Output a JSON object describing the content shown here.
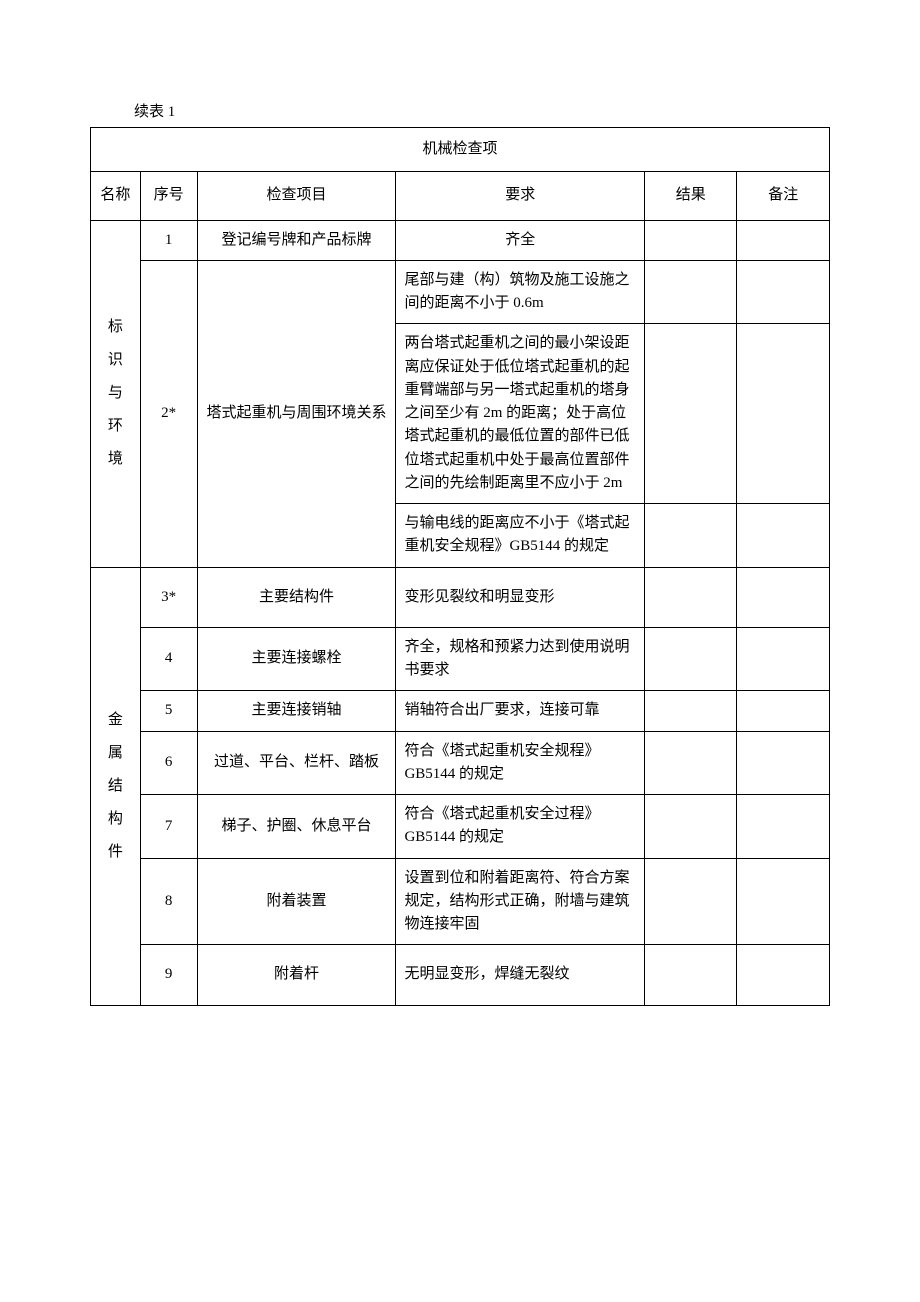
{
  "caption": "续表 1",
  "tableTitle": "机械检查项",
  "headers": {
    "name": "名称",
    "seq": "序号",
    "item": "检查项目",
    "req": "要求",
    "result": "结果",
    "remark": "备注"
  },
  "section1": {
    "name": "标识与环境",
    "row1": {
      "seq": "1",
      "item": "登记编号牌和产品标牌",
      "req": "齐全"
    },
    "row2": {
      "seq": "2*",
      "item": "塔式起重机与周围环境关系",
      "req_a": "尾部与建（构）筑物及施工设施之间的距离不小于 0.6m",
      "req_b": "两台塔式起重机之间的最小架设距离应保证处于低位塔式起重机的起重臂端部与另一塔式起重机的塔身之间至少有 2m 的距离；处于高位塔式起重机的最低位置的部件已低位塔式起重机中处于最高位置部件之间的先绘制距离里不应小于 2m",
      "req_c": "与输电线的距离应不小于《塔式起重机安全规程》GB5144 的规定"
    }
  },
  "section2": {
    "name": "金属结构件",
    "rows": [
      {
        "seq": "3*",
        "item": "主要结构件",
        "req": "变形见裂纹和明显变形"
      },
      {
        "seq": "4",
        "item": "主要连接螺栓",
        "req": "齐全，规格和预紧力达到使用说明书要求"
      },
      {
        "seq": "5",
        "item": "主要连接销轴",
        "req": "销轴符合出厂要求，连接可靠"
      },
      {
        "seq": "6",
        "item": "过道、平台、栏杆、踏板",
        "req": "符合《塔式起重机安全规程》GB5144 的规定"
      },
      {
        "seq": "7",
        "item": "梯子、护圈、休息平台",
        "req": "符合《塔式起重机安全过程》GB5144 的规定"
      },
      {
        "seq": "8",
        "item": "附着装置",
        "req": "设置到位和附着距离符、符合方案规定，结构形式正确，附墙与建筑物连接牢固"
      },
      {
        "seq": "9",
        "item": "附着杆",
        "req": "无明显变形，焊缝无裂纹"
      }
    ]
  }
}
